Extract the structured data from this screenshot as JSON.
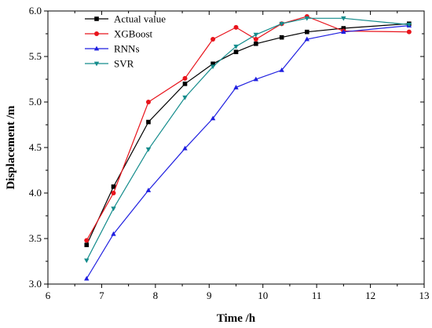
{
  "chart_data": {
    "type": "line",
    "xlabel": "Time /h",
    "ylabel": "Displacement /m",
    "xlim": [
      6,
      13
    ],
    "ylim": [
      3.0,
      6.0
    ],
    "xticks": [
      "6",
      "7",
      "8",
      "9",
      "10",
      "11",
      "12",
      "13"
    ],
    "yticks": [
      "3.0",
      "3.5",
      "4.0",
      "4.5",
      "5.0",
      "5.5",
      "6.0"
    ],
    "grid": false,
    "legend_position": "top-left",
    "series": [
      {
        "name": "Actual value",
        "color": "#000000",
        "marker": "square",
        "x": [
          6.72,
          7.22,
          7.87,
          8.55,
          9.07,
          9.5,
          9.87,
          10.35,
          10.82,
          11.5,
          12.72
        ],
        "y": [
          3.43,
          4.07,
          4.78,
          5.2,
          5.42,
          5.55,
          5.64,
          5.71,
          5.77,
          5.81,
          5.86
        ]
      },
      {
        "name": "XGBoost",
        "color": "#e8141c",
        "marker": "circle",
        "x": [
          6.72,
          7.22,
          7.87,
          8.55,
          9.07,
          9.5,
          9.87,
          10.35,
          10.82,
          11.5,
          12.72
        ],
        "y": [
          3.48,
          4.0,
          5.0,
          5.26,
          5.69,
          5.82,
          5.69,
          5.86,
          5.94,
          5.78,
          5.77
        ]
      },
      {
        "name": "RNNs",
        "color": "#1f1fe0",
        "marker": "triangle-up",
        "x": [
          6.72,
          7.22,
          7.87,
          8.55,
          9.07,
          9.5,
          9.87,
          10.35,
          10.82,
          11.5,
          12.72
        ],
        "y": [
          3.06,
          3.55,
          4.03,
          4.49,
          4.82,
          5.16,
          5.25,
          5.35,
          5.69,
          5.77,
          5.84
        ]
      },
      {
        "name": "SVR",
        "color": "#148c8c",
        "marker": "triangle-down",
        "x": [
          6.72,
          7.22,
          7.87,
          8.55,
          9.07,
          9.5,
          9.87,
          10.35,
          10.82,
          11.5,
          12.72
        ],
        "y": [
          3.26,
          3.83,
          4.48,
          5.05,
          5.39,
          5.61,
          5.74,
          5.86,
          5.92,
          5.92,
          5.85
        ]
      }
    ]
  }
}
